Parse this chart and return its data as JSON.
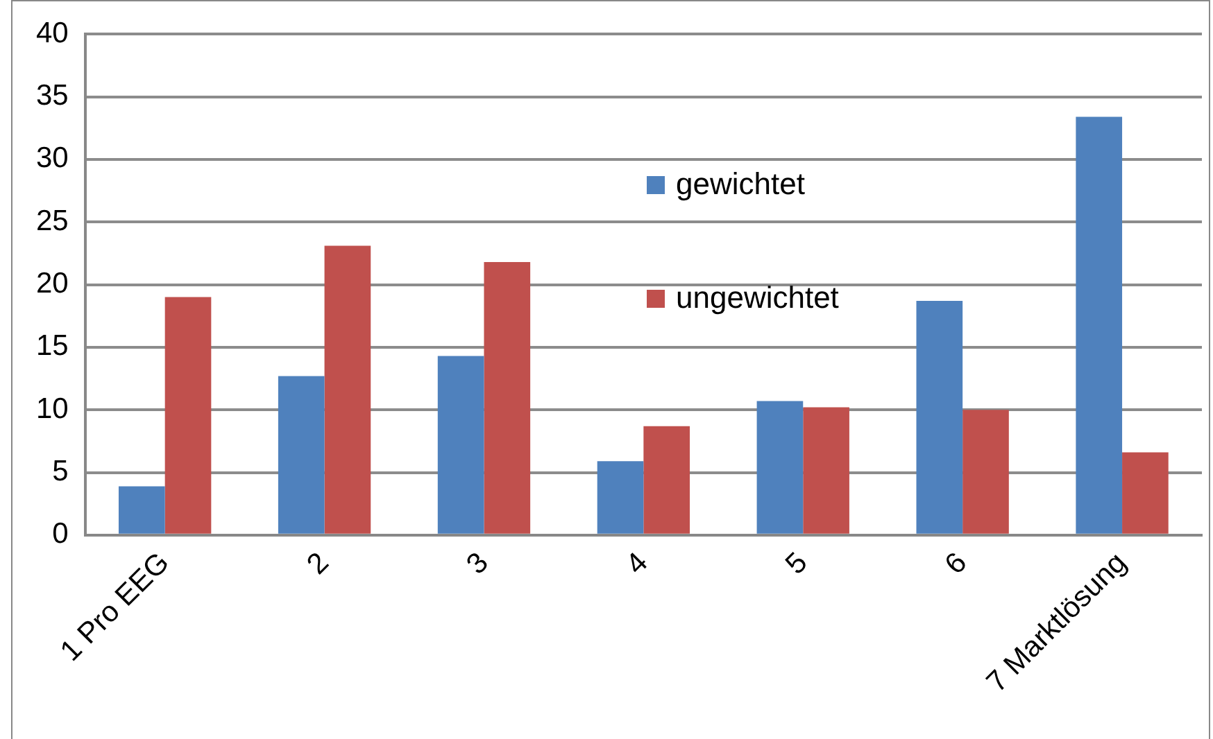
{
  "chart_data": {
    "type": "bar",
    "categories": [
      "1 Pro EEG",
      "2",
      "3",
      "4",
      "5",
      "6",
      "7 Marktlösung"
    ],
    "series": [
      {
        "name": "gewichtet",
        "color": "#4f81bd",
        "values": [
          3.9,
          12.7,
          14.3,
          5.9,
          10.7,
          18.7,
          33.4
        ]
      },
      {
        "name": "ungewichtet",
        "color": "#c0504d",
        "values": [
          19.0,
          23.1,
          21.8,
          8.7,
          10.2,
          10.0,
          6.6
        ]
      }
    ],
    "ylim": [
      0,
      40
    ],
    "yticks": [
      0,
      5,
      10,
      15,
      20,
      25,
      30,
      35,
      40
    ],
    "grid": "y",
    "legend": "top right"
  }
}
